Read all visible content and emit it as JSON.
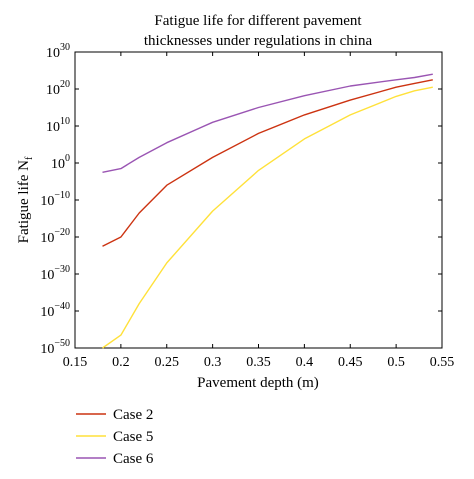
{
  "chart_data": {
    "type": "line",
    "title_lines": [
      "Fatigue life for different pavement",
      "thicknesses under regulations in china"
    ],
    "xlabel": "Pavement depth (m)",
    "ylabel_main": "Fatigue life N",
    "ylabel_sub": "f",
    "xlim": [
      0.15,
      0.55
    ],
    "ylim_log10": [
      -50,
      30
    ],
    "x_ticks": [
      "0.15",
      "0.2",
      "0.25",
      "0.3",
      "0.35",
      "0.4",
      "0.45",
      "0.5",
      "0.55"
    ],
    "y_tick_base": "10",
    "y_tick_exponents": [
      "−50",
      "−40",
      "−30",
      "−20",
      "−10",
      "0",
      "10",
      "20",
      "30"
    ],
    "y_scale": "log",
    "grid": false,
    "legend_position": "bottom-left, outside plot",
    "series": [
      {
        "name": "Case 2",
        "color": "#cc3311",
        "x": [
          0.18,
          0.2,
          0.22,
          0.25,
          0.3,
          0.35,
          0.4,
          0.45,
          0.5,
          0.52,
          0.54
        ],
        "log10_y": [
          -22.5,
          -20,
          -13.5,
          -6,
          1.5,
          8,
          13,
          17,
          20.5,
          21.5,
          22.5
        ]
      },
      {
        "name": "Case 5",
        "color": "#ffe13a",
        "x": [
          0.18,
          0.2,
          0.22,
          0.25,
          0.3,
          0.35,
          0.4,
          0.45,
          0.5,
          0.52,
          0.54
        ],
        "log10_y": [
          -50,
          -46.5,
          -38,
          -27,
          -13,
          -2,
          6.5,
          13,
          18,
          19.5,
          20.5
        ]
      },
      {
        "name": "Case 6",
        "color": "#9a55b3",
        "x": [
          0.18,
          0.2,
          0.22,
          0.25,
          0.3,
          0.35,
          0.4,
          0.45,
          0.5,
          0.52,
          0.54
        ],
        "log10_y": [
          -2.5,
          -1.5,
          1.5,
          5.5,
          11,
          15,
          18.2,
          20.8,
          22.5,
          23.1,
          24
        ]
      }
    ]
  }
}
